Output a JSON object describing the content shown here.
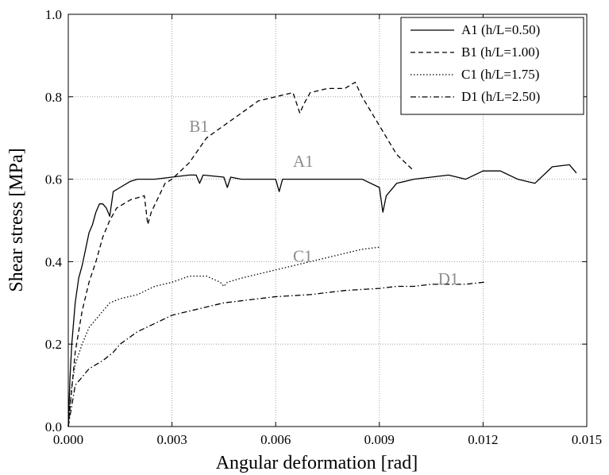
{
  "chart_data": {
    "type": "line",
    "title": "",
    "xlabel": "Angular deformation [rad]",
    "ylabel": "Shear stress [MPa]",
    "xlim": [
      0,
      0.015
    ],
    "ylim": [
      0,
      1.0
    ],
    "xticks": [
      "0.000",
      "0.003",
      "0.006",
      "0.009",
      "0.012",
      "0.015"
    ],
    "yticks": [
      "0.0",
      "0.2",
      "0.4",
      "0.6",
      "0.8",
      "1.0"
    ],
    "grid": true,
    "legend_position": "top-right",
    "series": [
      {
        "name": "A1 (h/L=0.50)",
        "label": "A1",
        "dash": "solid",
        "x": [
          0,
          5e-05,
          0.0001,
          0.0002,
          0.0003,
          0.0004,
          0.0005,
          0.0006,
          0.0007,
          0.0008,
          0.0009,
          0.001,
          0.0011,
          0.0012,
          0.0013,
          0.0015,
          0.0018,
          0.002,
          0.0025,
          0.003,
          0.0035,
          0.0037,
          0.0038,
          0.0039,
          0.0045,
          0.0046,
          0.0047,
          0.005,
          0.0055,
          0.006,
          0.0061,
          0.0062,
          0.007,
          0.008,
          0.0085,
          0.009,
          0.0091,
          0.0092,
          0.0095,
          0.01,
          0.011,
          0.0115,
          0.012,
          0.0125,
          0.013,
          0.0135,
          0.014,
          0.0145,
          0.0147
        ],
        "y": [
          0,
          0.12,
          0.2,
          0.3,
          0.36,
          0.39,
          0.43,
          0.47,
          0.49,
          0.52,
          0.54,
          0.54,
          0.53,
          0.51,
          0.57,
          0.58,
          0.595,
          0.6,
          0.6,
          0.605,
          0.61,
          0.61,
          0.59,
          0.61,
          0.605,
          0.58,
          0.605,
          0.6,
          0.6,
          0.6,
          0.57,
          0.6,
          0.6,
          0.6,
          0.6,
          0.58,
          0.52,
          0.56,
          0.59,
          0.6,
          0.61,
          0.6,
          0.62,
          0.62,
          0.6,
          0.59,
          0.63,
          0.635,
          0.615
        ]
      },
      {
        "name": "B1 (h/L=1.00)",
        "label": "B1",
        "dash": "dashed",
        "x": [
          0,
          0.0002,
          0.0004,
          0.0006,
          0.0008,
          0.001,
          0.0012,
          0.0014,
          0.0016,
          0.0018,
          0.002,
          0.0022,
          0.0023,
          0.0024,
          0.0026,
          0.0028,
          0.003,
          0.0035,
          0.004,
          0.0045,
          0.005,
          0.0055,
          0.006,
          0.0065,
          0.0067,
          0.0068,
          0.007,
          0.0075,
          0.008,
          0.0083,
          0.0085,
          0.009,
          0.0095,
          0.01
        ],
        "y": [
          0,
          0.18,
          0.28,
          0.35,
          0.4,
          0.46,
          0.5,
          0.53,
          0.54,
          0.55,
          0.555,
          0.56,
          0.49,
          0.52,
          0.555,
          0.59,
          0.6,
          0.64,
          0.7,
          0.73,
          0.76,
          0.79,
          0.8,
          0.81,
          0.76,
          0.78,
          0.81,
          0.82,
          0.82,
          0.835,
          0.8,
          0.73,
          0.66,
          0.62
        ]
      },
      {
        "name": "C1 (h/L=1.75)",
        "label": "C1",
        "dash": "dotted",
        "x": [
          0,
          0.0001,
          0.0002,
          0.0004,
          0.0006,
          0.0008,
          0.001,
          0.0012,
          0.0015,
          0.002,
          0.0025,
          0.003,
          0.0035,
          0.004,
          0.0044,
          0.0045,
          0.0046,
          0.005,
          0.0055,
          0.006,
          0.0065,
          0.007,
          0.0075,
          0.008,
          0.0085,
          0.009
        ],
        "y": [
          0,
          0.1,
          0.15,
          0.2,
          0.24,
          0.26,
          0.28,
          0.3,
          0.31,
          0.32,
          0.34,
          0.35,
          0.365,
          0.365,
          0.35,
          0.34,
          0.35,
          0.36,
          0.37,
          0.38,
          0.39,
          0.4,
          0.41,
          0.42,
          0.43,
          0.435
        ]
      },
      {
        "name": "D1 (h/L=2.50)",
        "label": "D1",
        "dash": "dashdot",
        "x": [
          0,
          0.0002,
          0.0004,
          0.0006,
          0.0008,
          0.001,
          0.0013,
          0.0015,
          0.002,
          0.0025,
          0.003,
          0.0035,
          0.004,
          0.0045,
          0.005,
          0.0055,
          0.006,
          0.007,
          0.008,
          0.009,
          0.0095,
          0.01,
          0.0105,
          0.011,
          0.0115,
          0.012,
          0.0121
        ],
        "y": [
          0,
          0.1,
          0.12,
          0.14,
          0.15,
          0.16,
          0.18,
          0.2,
          0.23,
          0.25,
          0.27,
          0.28,
          0.29,
          0.3,
          0.305,
          0.31,
          0.315,
          0.32,
          0.33,
          0.335,
          0.34,
          0.34,
          0.345,
          0.345,
          0.345,
          0.35,
          0.35
        ]
      }
    ],
    "annotations": [
      {
        "text": "B1",
        "x": 0.0035,
        "y": 0.715
      },
      {
        "text": "A1",
        "x": 0.0065,
        "y": 0.63
      },
      {
        "text": "C1",
        "x": 0.0065,
        "y": 0.4
      },
      {
        "text": "D1",
        "x": 0.0107,
        "y": 0.345
      }
    ],
    "colors": {
      "lines": "#000000",
      "grid": "#8c8c8c",
      "annotation": "#8c8c8c"
    }
  }
}
